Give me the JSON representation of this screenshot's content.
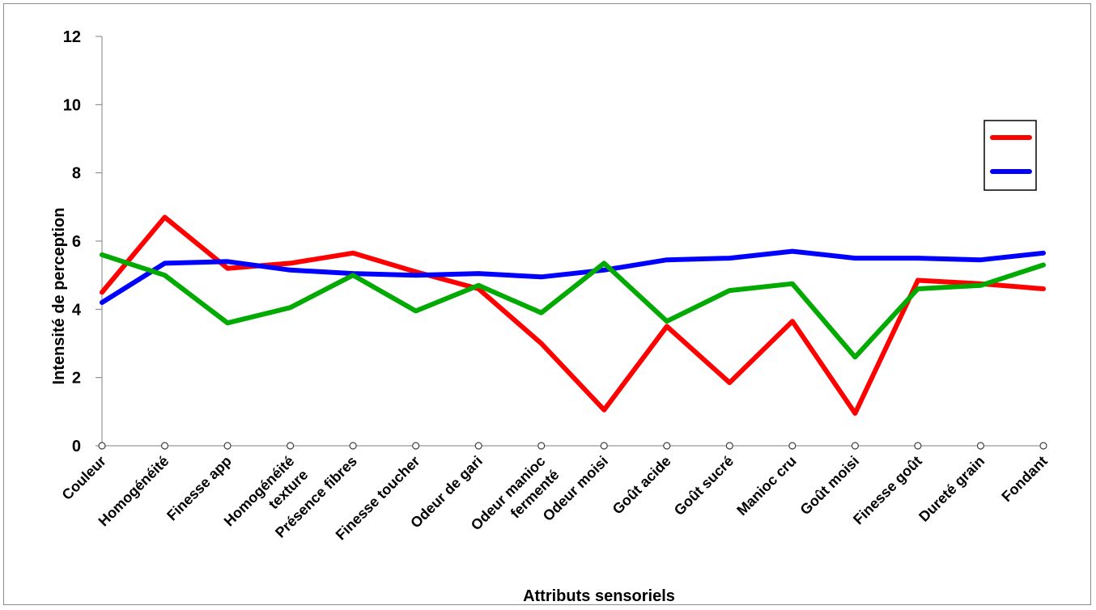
{
  "chart_data": {
    "type": "line",
    "title": "",
    "xlabel": "Attributs sensoriels",
    "ylabel": "Intensité de perception",
    "ylim": [
      0,
      12
    ],
    "yticks": [
      0,
      2,
      4,
      6,
      8,
      10,
      12
    ],
    "grid": false,
    "legend_position": "right",
    "categories": [
      [
        "Couleur"
      ],
      [
        "Homogénéité"
      ],
      [
        "Finesse app"
      ],
      [
        "Homogénéité",
        "texture"
      ],
      [
        "Présence fibres"
      ],
      [
        "Finesse toucher"
      ],
      [
        "Odeur de gari"
      ],
      [
        "Odeur manioc",
        "fermenté"
      ],
      [
        "Odeur moisi"
      ],
      [
        "Goût acide"
      ],
      [
        "Goût sucré"
      ],
      [
        "Manioc cru"
      ],
      [
        "Goût moisi"
      ],
      [
        "Finesse goût"
      ],
      [
        "Dureté grain"
      ],
      [
        "Fondant"
      ]
    ],
    "series": [
      {
        "color": "#ff0000",
        "legend": true,
        "values": [
          4.5,
          6.7,
          5.2,
          5.35,
          5.65,
          5.1,
          4.6,
          3.0,
          1.05,
          3.5,
          1.85,
          3.65,
          0.95,
          4.85,
          4.75,
          4.6
        ]
      },
      {
        "color": "#0000ff",
        "legend": true,
        "values": [
          4.2,
          5.35,
          5.4,
          5.15,
          5.05,
          5.0,
          5.05,
          4.95,
          5.15,
          5.45,
          5.5,
          5.7,
          5.5,
          5.5,
          5.45,
          5.65
        ]
      },
      {
        "color": "#00aa00",
        "legend": false,
        "values": [
          5.6,
          5.0,
          3.6,
          4.05,
          5.0,
          3.95,
          4.7,
          3.9,
          5.35,
          3.65,
          4.55,
          4.75,
          2.6,
          4.6,
          4.7,
          5.3
        ]
      }
    ]
  }
}
